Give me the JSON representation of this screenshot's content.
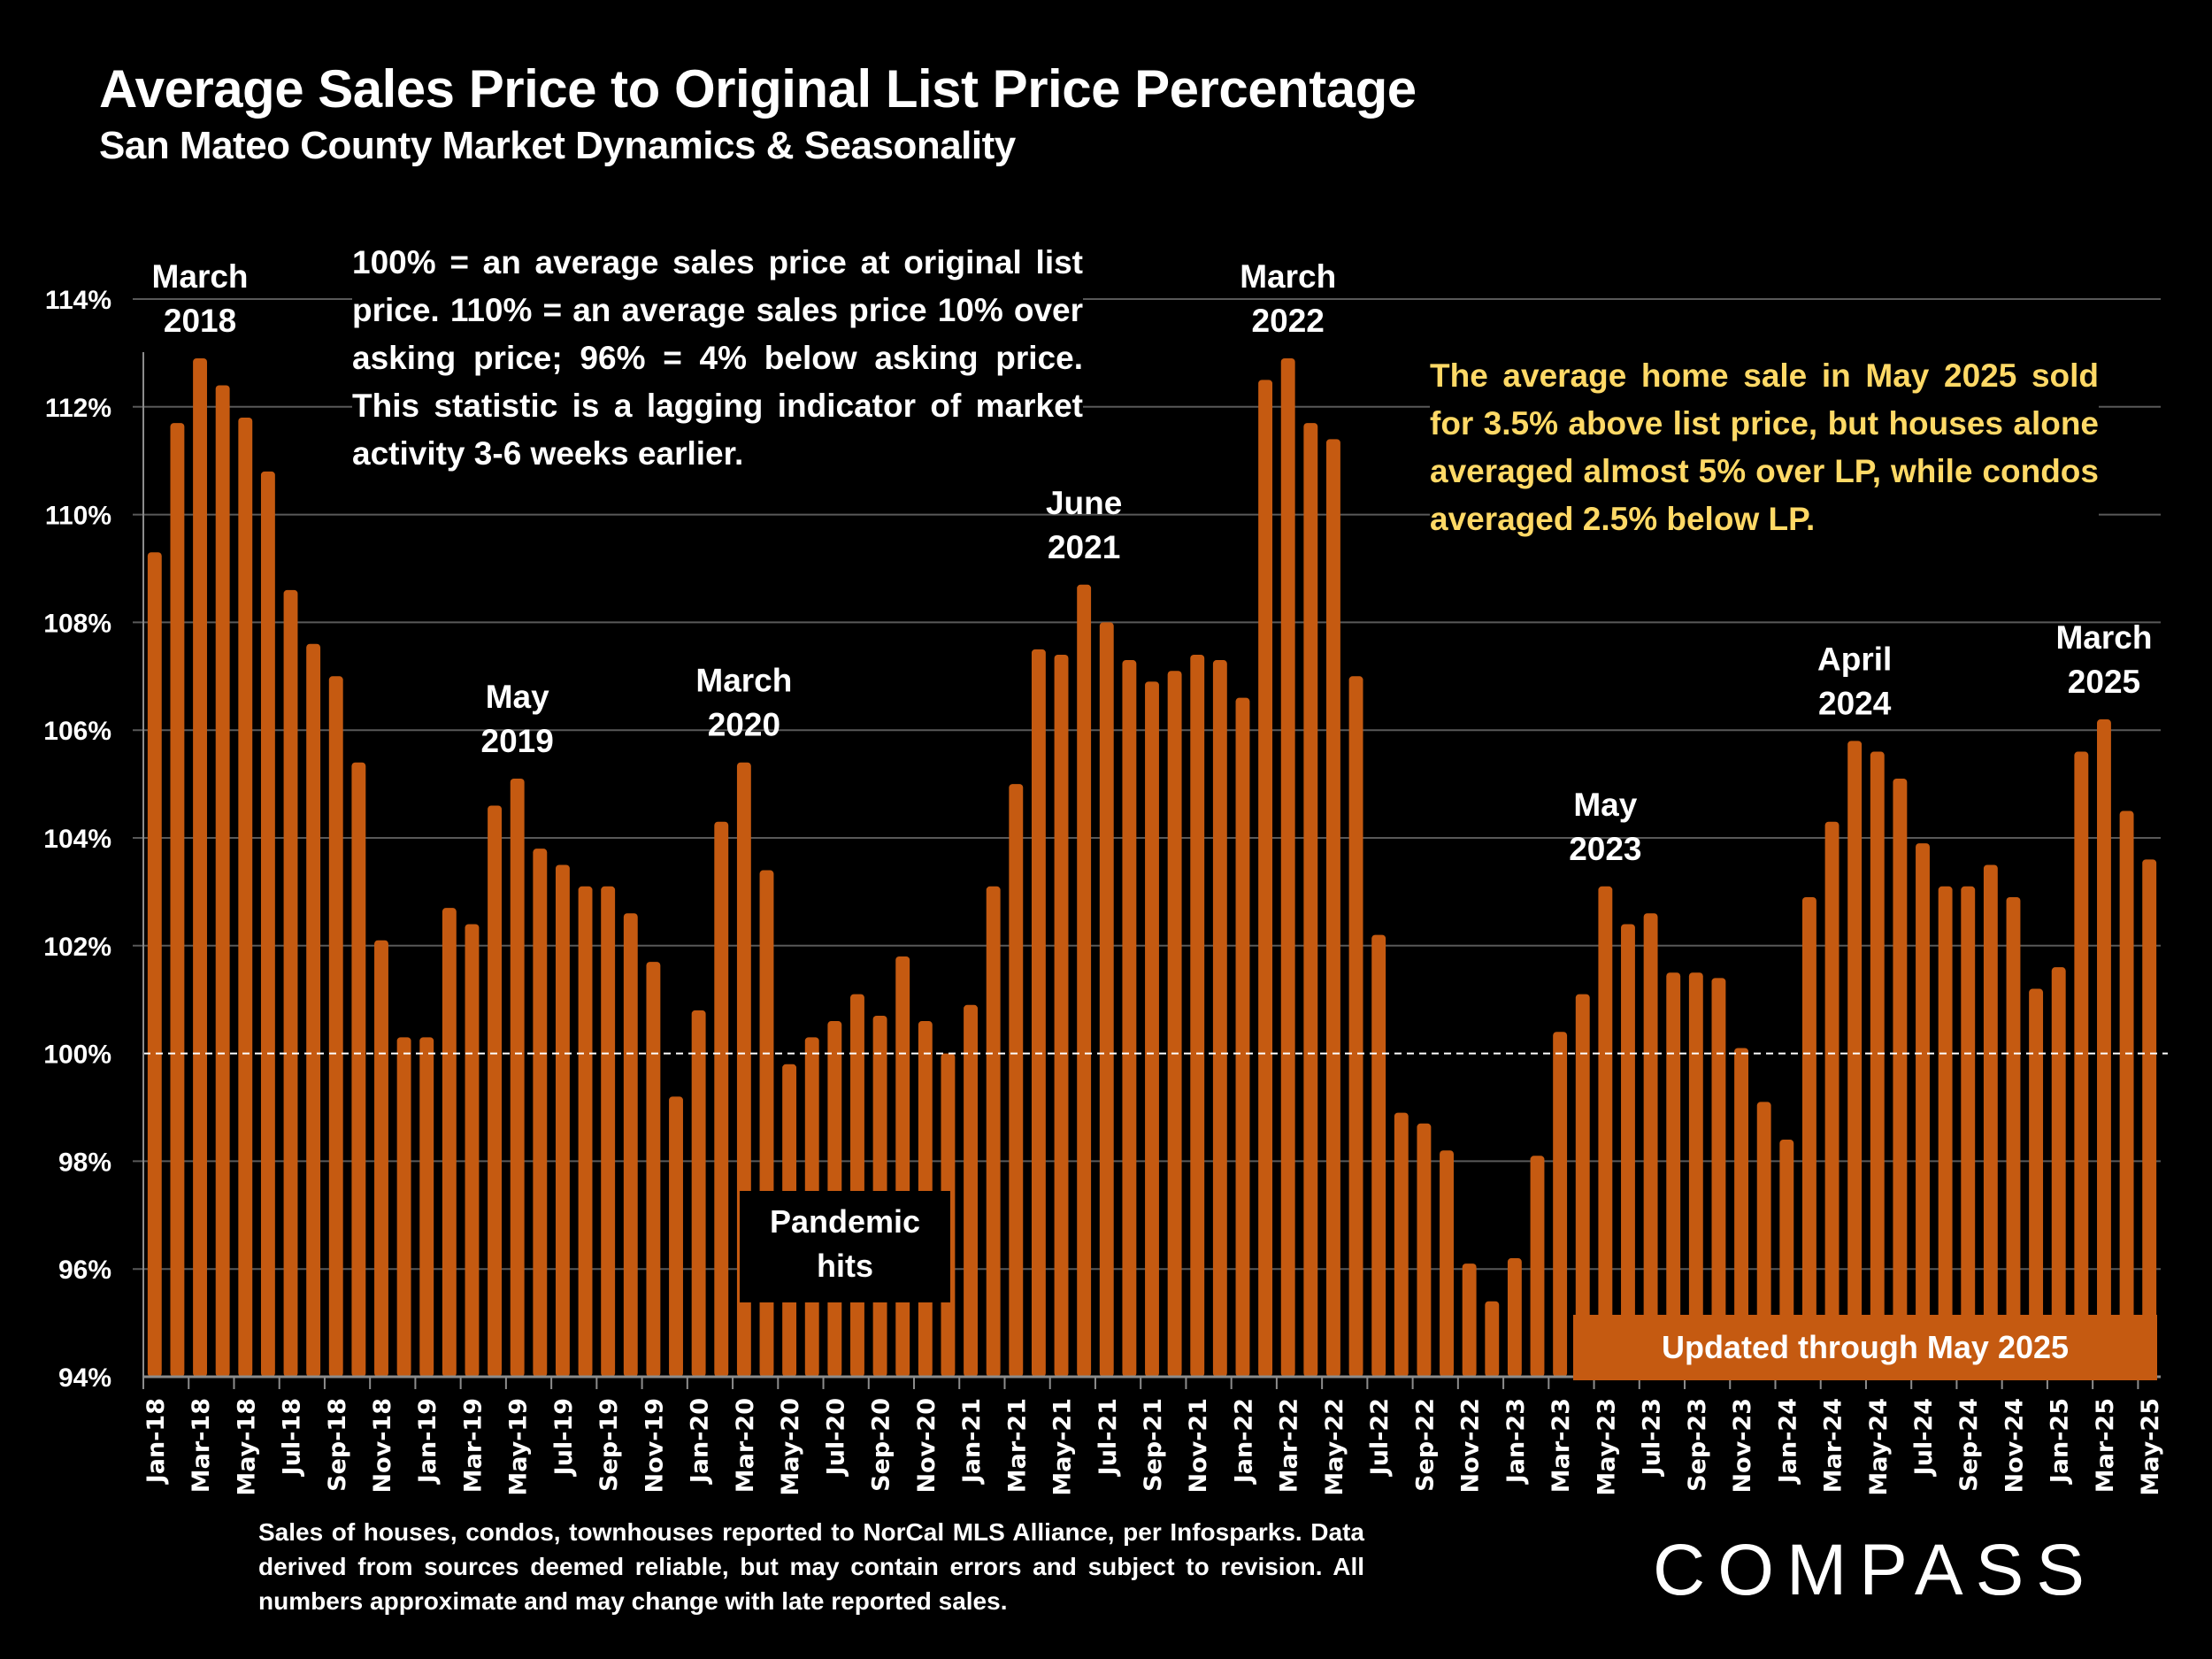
{
  "header": {
    "title": "Average Sales Price to Original List Price Percentage",
    "subtitle": "San Mateo County Market Dynamics & Seasonality"
  },
  "notes": {
    "definition": "100% = an average sales price at original list price. 110% = an average sales price 10% over asking price; 96% = 4% below asking price. This statistic is a lagging indicator of market activity 3-6 weeks earlier.",
    "highlight": "The average home sale in May 2025 sold for 3.5% above list price, but houses alone averaged almost 5% over LP, while condos averaged 2.5% below LP.",
    "pandemic": "Pandemic hits",
    "updated": "Updated through May 2025",
    "footer": "Sales of houses, condos, townhouses reported to NorCal MLS Alliance, per Infosparks. Data derived from sources deemed reliable, but may contain errors and subject to revision. All numbers approximate and may change with late reported sales."
  },
  "brand": {
    "logo_text": "COMPASS"
  },
  "colors": {
    "bar": "#c55a11",
    "highlight_text": "#ffd966",
    "background": "#000000",
    "gridline": "#595959"
  },
  "chart_data": {
    "type": "bar",
    "title": "Average Sales Price to Original List Price Percentage",
    "subtitle": "San Mateo County Market Dynamics & Seasonality",
    "xlabel": "",
    "ylabel": "",
    "ylim": [
      94,
      114
    ],
    "yticks": [
      94,
      96,
      98,
      100,
      102,
      104,
      106,
      108,
      110,
      112,
      114
    ],
    "ytick_format": "{v}%",
    "reference_line": {
      "value": 100,
      "style": "dashed"
    },
    "grid": true,
    "x_label_every": 2,
    "categories": [
      "Jan-18",
      "Feb-18",
      "Mar-18",
      "Apr-18",
      "May-18",
      "Jun-18",
      "Jul-18",
      "Aug-18",
      "Sep-18",
      "Oct-18",
      "Nov-18",
      "Dec-18",
      "Jan-19",
      "Feb-19",
      "Mar-19",
      "Apr-19",
      "May-19",
      "Jun-19",
      "Jul-19",
      "Aug-19",
      "Sep-19",
      "Oct-19",
      "Nov-19",
      "Dec-19",
      "Jan-20",
      "Feb-20",
      "Mar-20",
      "Apr-20",
      "May-20",
      "Jun-20",
      "Jul-20",
      "Aug-20",
      "Sep-20",
      "Oct-20",
      "Nov-20",
      "Dec-20",
      "Jan-21",
      "Feb-21",
      "Mar-21",
      "Apr-21",
      "May-21",
      "Jun-21",
      "Jul-21",
      "Aug-21",
      "Sep-21",
      "Oct-21",
      "Nov-21",
      "Dec-21",
      "Jan-22",
      "Feb-22",
      "Mar-22",
      "Apr-22",
      "May-22",
      "Jun-22",
      "Jul-22",
      "Aug-22",
      "Sep-22",
      "Oct-22",
      "Nov-22",
      "Dec-22",
      "Jan-23",
      "Feb-23",
      "Mar-23",
      "Apr-23",
      "May-23",
      "Jun-23",
      "Jul-23",
      "Aug-23",
      "Sep-23",
      "Oct-23",
      "Nov-23",
      "Dec-23",
      "Jan-24",
      "Feb-24",
      "Mar-24",
      "Apr-24",
      "May-24",
      "Jun-24",
      "Jul-24",
      "Aug-24",
      "Sep-24",
      "Oct-24",
      "Nov-24",
      "Dec-24",
      "Jan-25",
      "Feb-25",
      "Mar-25",
      "Apr-25",
      "May-25"
    ],
    "values": [
      109.3,
      111.7,
      112.9,
      112.4,
      111.8,
      110.8,
      108.6,
      107.6,
      107.0,
      105.4,
      102.1,
      100.3,
      100.3,
      102.7,
      102.4,
      104.6,
      105.1,
      103.8,
      103.5,
      103.1,
      103.1,
      102.6,
      101.7,
      99.2,
      100.8,
      104.3,
      105.4,
      103.4,
      99.8,
      100.3,
      100.6,
      101.1,
      100.7,
      101.8,
      100.6,
      100.0,
      100.9,
      103.1,
      105.0,
      107.5,
      107.4,
      108.7,
      108.0,
      107.3,
      106.9,
      107.1,
      107.4,
      107.3,
      106.6,
      112.5,
      112.9,
      111.7,
      111.4,
      107.0,
      102.2,
      98.9,
      98.7,
      98.2,
      96.1,
      95.4,
      96.2,
      98.1,
      100.4,
      101.1,
      103.1,
      102.4,
      102.6,
      101.5,
      101.5,
      101.4,
      100.1,
      99.1,
      98.4,
      102.9,
      104.3,
      105.8,
      105.6,
      105.1,
      103.9,
      103.1,
      103.1,
      103.5,
      102.9,
      101.2,
      101.6,
      105.6,
      106.2,
      104.5,
      103.6
    ],
    "annotations": [
      {
        "label": [
          "March",
          "2018"
        ],
        "category": "Mar-18"
      },
      {
        "label": [
          "May",
          "2019"
        ],
        "category": "May-19"
      },
      {
        "label": [
          "March",
          "2020"
        ],
        "category": "Mar-20"
      },
      {
        "label": [
          "June",
          "2021"
        ],
        "category": "Jun-21"
      },
      {
        "label": [
          "March",
          "2022"
        ],
        "category": "Mar-22"
      },
      {
        "label": [
          "May",
          "2023"
        ],
        "category": "May-23"
      },
      {
        "label": [
          "April",
          "2024"
        ],
        "category": "Apr-24"
      },
      {
        "label": [
          "March",
          "2025"
        ],
        "category": "Mar-25"
      }
    ]
  }
}
